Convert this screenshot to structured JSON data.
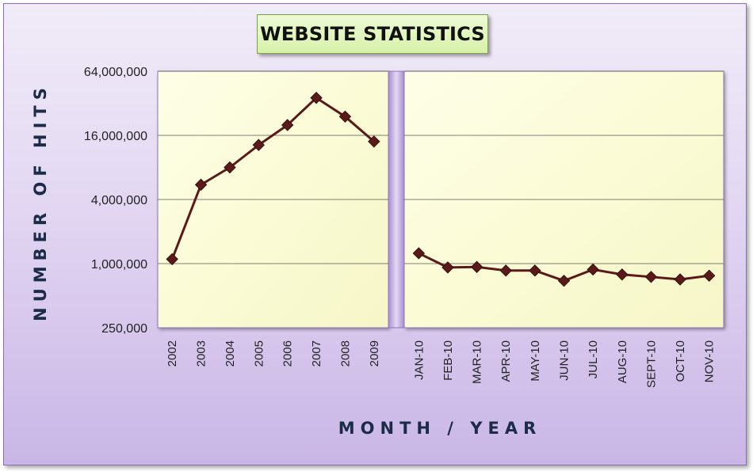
{
  "chart_data": {
    "type": "line",
    "title": "WEBSITE STATISTICS",
    "xlabel": "MONTH / YEAR",
    "ylabel": "NUMBER OF HITS",
    "yscale": "log2",
    "ylim": [
      250000,
      64000000
    ],
    "yticks": [
      250000,
      1000000,
      4000000,
      16000000,
      64000000
    ],
    "ytick_labels": [
      "250,000",
      "1,000,000",
      "4,000,000",
      "16,000,000",
      "64,000,000"
    ],
    "grid": true,
    "colors": {
      "line": "#5b1a1a",
      "marker": "#5b1a1a",
      "plot_bg": "#fbfbd8",
      "divider": "#b7a2da"
    },
    "segments": [
      {
        "categories": [
          "2002",
          "2003",
          "2004",
          "2005",
          "2006",
          "2007",
          "2008",
          "2009"
        ],
        "values": [
          1100000,
          5500000,
          8000000,
          13000000,
          20000000,
          36000000,
          24000000,
          14000000
        ]
      },
      {
        "categories": [
          "JAN-10",
          "FEB-10",
          "MAR-10",
          "APR-10",
          "MAY-10",
          "JUN-10",
          "JUL-10",
          "AUG-10",
          "SEPT-10",
          "OCT-10",
          "NOV-10"
        ],
        "values": [
          1250000,
          920000,
          930000,
          860000,
          860000,
          690000,
          880000,
          790000,
          750000,
          710000,
          770000
        ]
      }
    ]
  }
}
